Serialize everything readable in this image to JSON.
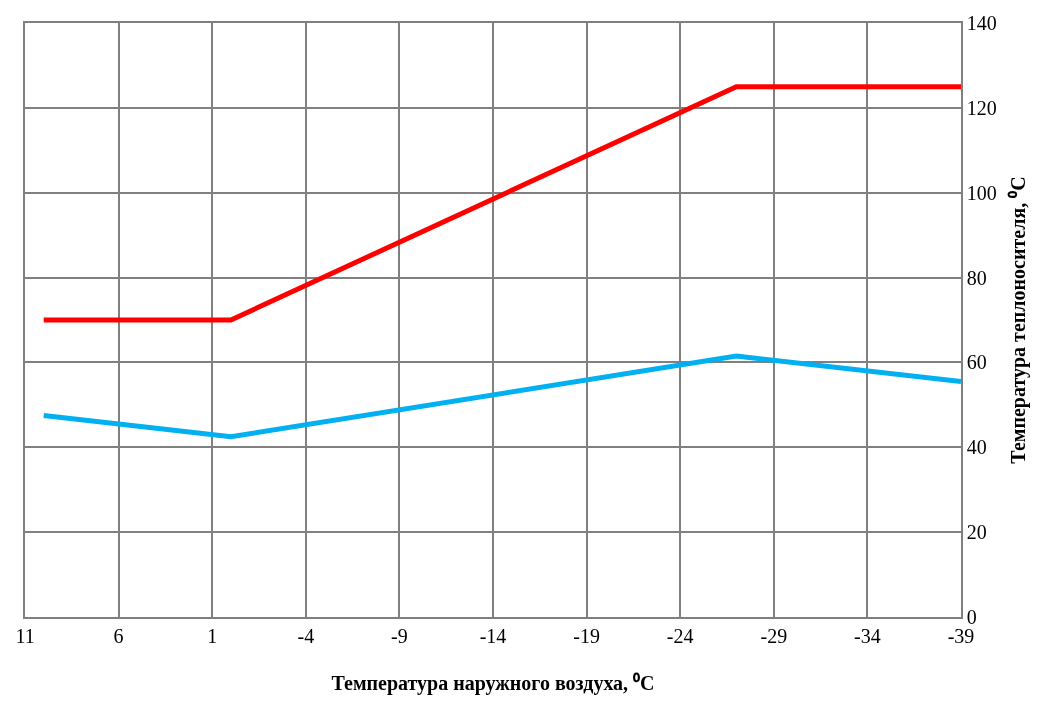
{
  "chart_data": {
    "type": "line",
    "xlabel": "Температура наружного воздуха, ⁰C",
    "ylabel": "Температура теплоносителя, ⁰C",
    "series": [
      {
        "color": "#ff0000",
        "x": [
          10,
          0,
          -27,
          -39
        ],
        "values": [
          70,
          70,
          125,
          125
        ]
      },
      {
        "color": "#00b0f0",
        "x": [
          10,
          0,
          -27,
          -39
        ],
        "values": [
          47.5,
          42.5,
          61.5,
          55.5
        ]
      }
    ],
    "xlim": [
      11,
      -39
    ],
    "xticks": [
      11,
      6,
      1,
      -4,
      -9,
      -14,
      -19,
      -24,
      -29,
      -34,
      -39
    ],
    "ylim": [
      0,
      140
    ],
    "yticks": [
      0,
      20,
      40,
      60,
      80,
      100,
      120,
      140
    ],
    "grid": true,
    "marker": "none",
    "line_style": "solid"
  }
}
